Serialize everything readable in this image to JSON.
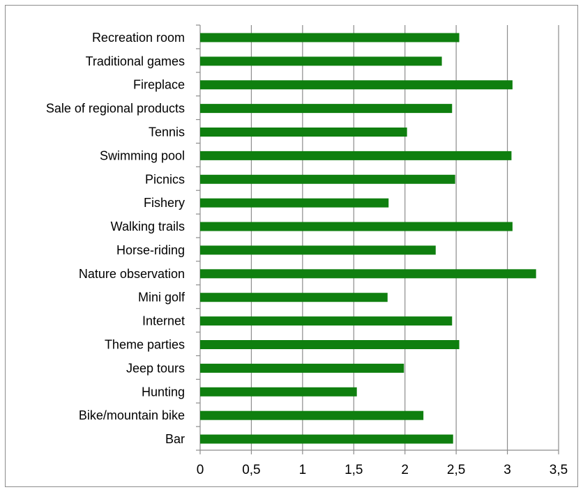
{
  "chart_data": {
    "type": "bar",
    "orientation": "horizontal",
    "categories": [
      "Recreation room",
      "Traditional games",
      "Fireplace",
      "Sale of regional products",
      "Tennis",
      "Swimming pool",
      "Picnics",
      "Fishery",
      "Walking trails",
      "Horse-riding",
      "Nature observation",
      "Mini golf",
      "Internet",
      "Theme parties",
      "Jeep tours",
      "Hunting",
      "Bike/mountain bike",
      "Bar"
    ],
    "values": [
      2.53,
      2.36,
      3.05,
      2.46,
      2.02,
      3.04,
      2.49,
      1.84,
      3.05,
      2.3,
      3.28,
      1.83,
      2.46,
      2.53,
      1.99,
      1.53,
      2.18,
      2.47
    ],
    "xlim": [
      0,
      3.5
    ],
    "xticks": [
      "0",
      "0,5",
      "1",
      "1,5",
      "2",
      "2,5",
      "3",
      "3,5"
    ],
    "xtick_values": [
      0,
      0.5,
      1,
      1.5,
      2,
      2.5,
      3,
      3.5
    ],
    "title": "",
    "xlabel": "",
    "ylabel": "",
    "grid": "vertical",
    "legend": "none",
    "colors": {
      "bar": "#0f7f0f",
      "grid": "#8c8c8c",
      "axis": "#8c8c8c"
    }
  }
}
